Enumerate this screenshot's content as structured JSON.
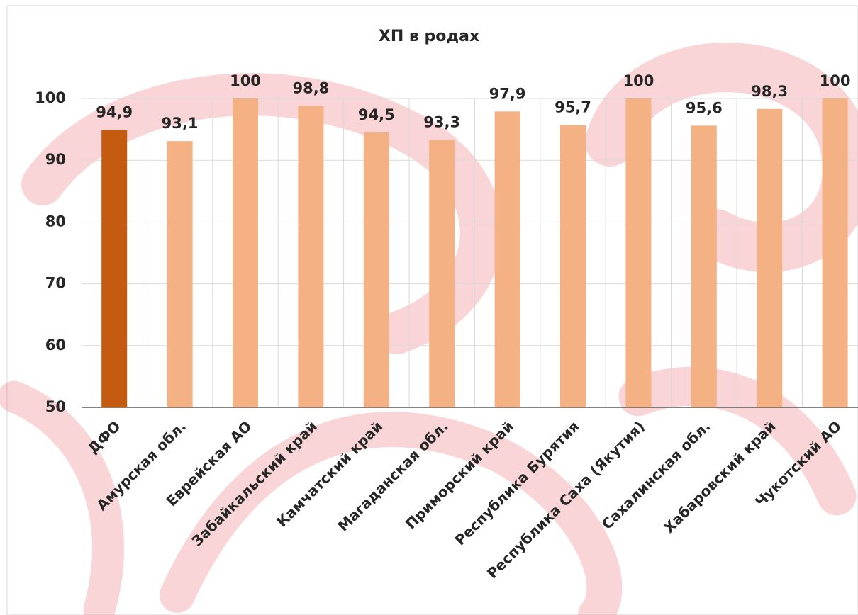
{
  "chart_data": {
    "type": "bar",
    "title": "ХП в родах",
    "categories": [
      "ДФО",
      "Амурская обл.",
      "Еврейская АО",
      "Забайкальский край",
      "Камчатский край",
      "Магаданская обл.",
      "Приморский край",
      "Республика Бурятия",
      "Республика Саха (Якутия)",
      "Сахалинская обл.",
      "Хабаровский край",
      "Чукотский АО"
    ],
    "values": [
      94.9,
      93.1,
      100,
      98.8,
      94.5,
      93.3,
      97.9,
      95.7,
      100,
      95.6,
      98.3,
      100
    ],
    "value_labels": [
      "94,9",
      "93,1",
      "100",
      "98,8",
      "94,5",
      "93,3",
      "97,9",
      "95,7",
      "100",
      "95,6",
      "98,3",
      "100"
    ],
    "colors": [
      "#c55a11",
      "#f4b183",
      "#f4b183",
      "#f4b183",
      "#f4b183",
      "#f4b183",
      "#f4b183",
      "#f4b183",
      "#f4b183",
      "#f4b183",
      "#f4b183",
      "#f4b183"
    ],
    "ylim": [
      50,
      100
    ],
    "yticks": [
      50,
      60,
      70,
      80,
      90,
      100
    ],
    "grid": true
  }
}
